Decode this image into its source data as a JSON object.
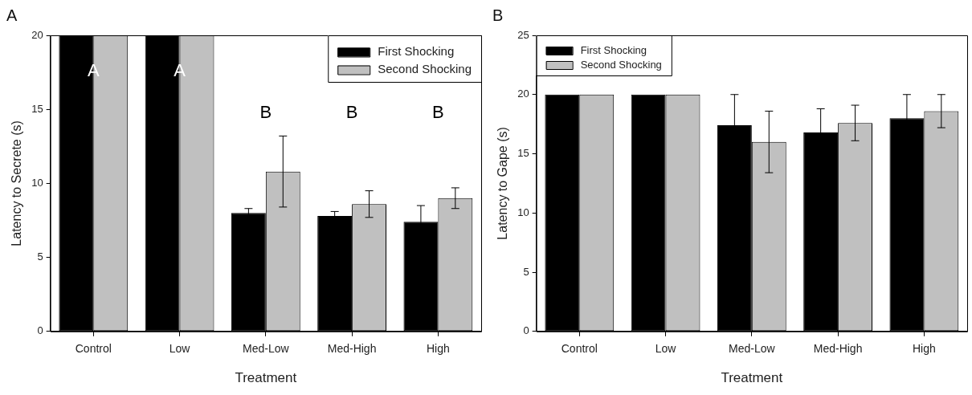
{
  "chart_data": [
    {
      "type": "bar",
      "title": "A",
      "xlabel": "Treatment",
      "ylabel": "Latency to Secrete (s)",
      "categories": [
        "Control",
        "Low",
        "Med-Low",
        "Med-High",
        "High"
      ],
      "series": [
        {
          "name": "First Shocking",
          "color": "#000000",
          "values": [
            20,
            20,
            8.0,
            7.8,
            7.4
          ],
          "errors": [
            null,
            null,
            0.3,
            0.3,
            1.1
          ]
        },
        {
          "name": "Second Shocking",
          "color": "#c0c0c0",
          "values": [
            20,
            20,
            10.8,
            8.6,
            9.0
          ],
          "errors": [
            null,
            null,
            2.4,
            0.9,
            0.7
          ]
        }
      ],
      "ylim": [
        0,
        20
      ],
      "yticks": [
        0,
        5,
        10,
        15,
        20
      ],
      "legend": "top right",
      "annotations": [
        "A",
        "A",
        "B",
        "B",
        "B"
      ]
    },
    {
      "type": "bar",
      "title": "B",
      "xlabel": "Treatment",
      "ylabel": "Latency to Gape (s)",
      "categories": [
        "Control",
        "Low",
        "Med-Low",
        "Med-High",
        "High"
      ],
      "series": [
        {
          "name": "First Shocking",
          "color": "#000000",
          "values": [
            20,
            20,
            17.4,
            16.8,
            18.0
          ],
          "errors": [
            null,
            null,
            2.6,
            2.0,
            2.0
          ]
        },
        {
          "name": "Second Shocking",
          "color": "#c0c0c0",
          "values": [
            20,
            20,
            16.0,
            17.6,
            18.6
          ],
          "errors": [
            null,
            null,
            2.6,
            1.5,
            1.4
          ]
        }
      ],
      "ylim": [
        0,
        25
      ],
      "yticks": [
        0,
        5,
        10,
        15,
        20,
        25
      ],
      "legend": "top left"
    }
  ]
}
